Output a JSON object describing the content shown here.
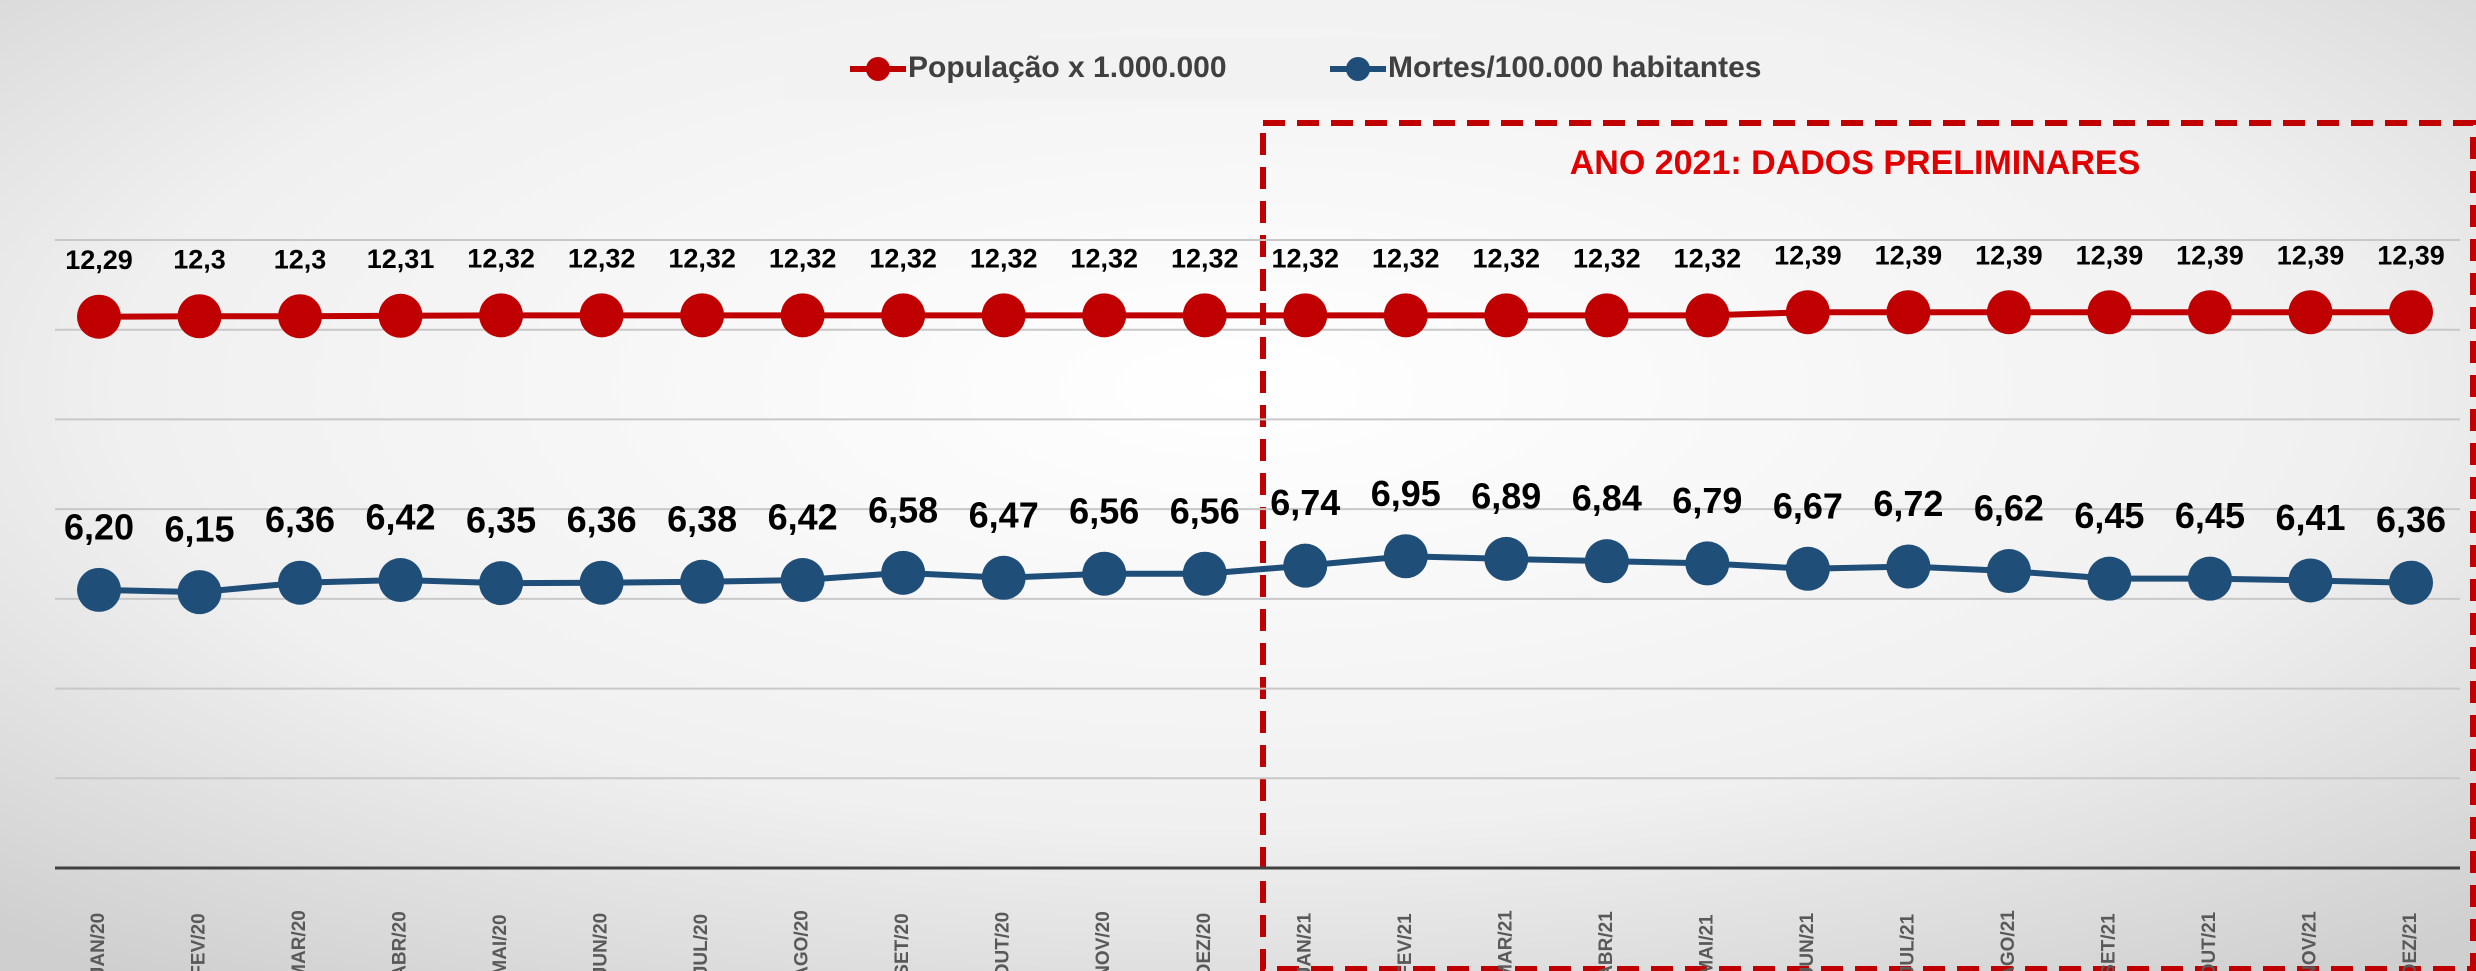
{
  "chart_data": {
    "type": "line",
    "annotation": "ANO 2021: DADOS PRELIMINARES",
    "categories": [
      "JAN/20",
      "FEV/20",
      "MAR/20",
      "ABR/20",
      "MAI/20",
      "JUN/20",
      "JUL/20",
      "AGO/20",
      "SET/20",
      "OUT/20",
      "NOV/20",
      "DEZ/20",
      "JAN/21",
      "FEV/21",
      "MAR/21",
      "ABR/21",
      "MAI/21",
      "JUN/21",
      "JUL/21",
      "AGO/21",
      "SET/21",
      "OUT/21",
      "NOV/21",
      "DEZ/21"
    ],
    "series": [
      {
        "name": "População x 1.000.000",
        "color": "#c00000",
        "values": [
          12.29,
          12.3,
          12.3,
          12.31,
          12.32,
          12.32,
          12.32,
          12.32,
          12.32,
          12.32,
          12.32,
          12.32,
          12.32,
          12.32,
          12.32,
          12.32,
          12.32,
          12.39,
          12.39,
          12.39,
          12.39,
          12.39,
          12.39,
          12.39
        ],
        "value_labels": [
          "12,29",
          "12,3",
          "12,3",
          "12,31",
          "12,32",
          "12,32",
          "12,32",
          "12,32",
          "12,32",
          "12,32",
          "12,32",
          "12,32",
          "12,32",
          "12,32",
          "12,32",
          "12,32",
          "12,32",
          "12,39",
          "12,39",
          "12,39",
          "12,39",
          "12,39",
          "12,39",
          "12,39"
        ]
      },
      {
        "name": "Mortes/100.000 habitantes",
        "color": "#1f4e79",
        "values": [
          6.2,
          6.15,
          6.36,
          6.42,
          6.35,
          6.36,
          6.38,
          6.42,
          6.58,
          6.47,
          6.56,
          6.56,
          6.74,
          6.95,
          6.89,
          6.84,
          6.79,
          6.67,
          6.72,
          6.62,
          6.45,
          6.45,
          6.41,
          6.36
        ],
        "value_labels": [
          "6,20",
          "6,15",
          "6,36",
          "6,42",
          "6,35",
          "6,36",
          "6,38",
          "6,42",
          "6,58",
          "6,47",
          "6,56",
          "6,56",
          "6,74",
          "6,95",
          "6,89",
          "6,84",
          "6,79",
          "6,67",
          "6,72",
          "6,62",
          "6,45",
          "6,45",
          "6,41",
          "6,36"
        ]
      }
    ],
    "ylim": [
      0,
      14
    ],
    "yticks": [
      0,
      2,
      4,
      6,
      8,
      10,
      12,
      14
    ],
    "grid": true
  }
}
